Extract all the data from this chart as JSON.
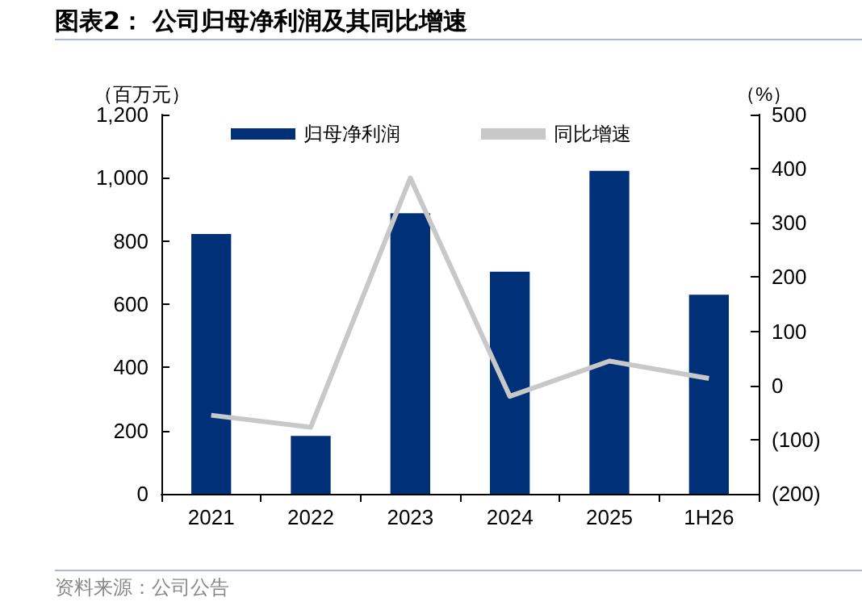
{
  "chart_data": {
    "type": "bar",
    "title": "图表2：  公司归母净利润及其同比增速",
    "ylabel": "（百万元）",
    "y2label": "（%）",
    "categories": [
      "2021",
      "2022",
      "2023",
      "2024",
      "2025",
      "1H26"
    ],
    "series": [
      {
        "name": "归母净利润",
        "color": "#003178",
        "values": [
          822,
          183,
          888,
          703,
          1022,
          630
        ]
      },
      {
        "name": "同比增速",
        "type": "line",
        "axis": "y2",
        "color": "#c8c8c8",
        "marker": "none",
        "values": [
          -55,
          -77,
          383,
          -20,
          45,
          13
        ]
      }
    ],
    "ylim": [
      0,
      1200
    ],
    "yticks": [
      0,
      200,
      400,
      600,
      800,
      {
        "value": 1000,
        "label": "1,000"
      },
      {
        "value": 1200,
        "label": "1,200"
      }
    ],
    "y2lim": [
      -200,
      500
    ],
    "y2ticks": [
      {
        "value": -200,
        "label": "(200)"
      },
      {
        "value": -100,
        "label": "(100)"
      },
      0,
      100,
      200,
      300,
      400,
      500
    ],
    "legend": "top",
    "grid": false,
    "annotations": [
      "资料来源：公司公告"
    ]
  }
}
